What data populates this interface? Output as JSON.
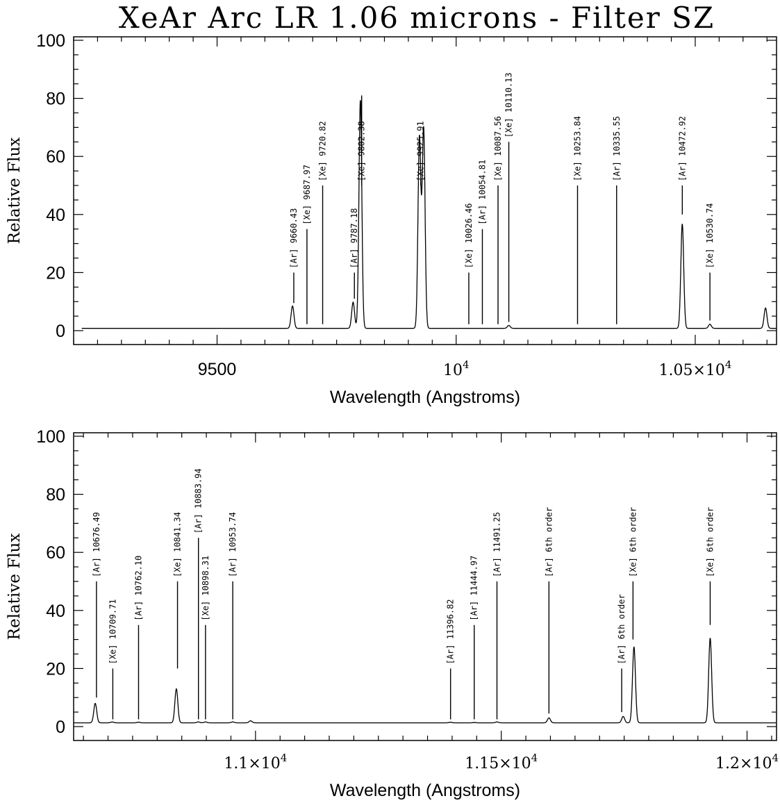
{
  "title": "XeAr Arc LR 1.06 microns - Filter SZ",
  "chart_data": [
    {
      "type": "line",
      "xlabel": "Wavelength (Angstroms)",
      "ylabel": "Relative Flux",
      "xlim": [
        9200,
        10670
      ],
      "ylim": [
        0,
        100
      ],
      "yticks": [
        "0",
        "20",
        "40",
        "60",
        "80",
        "100"
      ],
      "xticks": [
        {
          "value": 9500,
          "label": "9500",
          "style": "plain"
        },
        {
          "value": 10000,
          "base": "10",
          "exp": "4",
          "style": "pow"
        },
        {
          "value": 10500,
          "base": "1.05×10",
          "exp": "4",
          "style": "pow"
        }
      ],
      "baseline": 0.8,
      "peaks": [
        {
          "x": 9657.8,
          "height": 8.5
        },
        {
          "x": 9784.5,
          "height": 9.8
        },
        {
          "x": 9799.7,
          "height": 79.5
        },
        {
          "x": 9923.2,
          "height": 66.5
        },
        {
          "x": 9932.0,
          "height": 69.5
        },
        {
          "x": 10110.1,
          "height": 1.8
        },
        {
          "x": 10472.9,
          "height": 36.8
        },
        {
          "x": 10530.7,
          "height": 2.2
        },
        {
          "x": 10647.0,
          "height": 7.8
        }
      ],
      "lines": [
        {
          "label": "[Ar] 9660.43",
          "x": 9660.43,
          "y0": 9.5,
          "y1": 20
        },
        {
          "label": "[Xe] 9687.97",
          "x": 9687.97,
          "y0": 2.2,
          "y1": 35
        },
        {
          "label": "[Xe] 9720.82",
          "x": 9720.82,
          "y0": 2.2,
          "y1": 50
        },
        {
          "label": "[Ar] 9787.18",
          "x": 9787.18,
          "y0": 11,
          "y1": 20
        },
        {
          "label": "[Xe] 9802.38",
          "x": 9802.38,
          "y0": 81,
          "y1": 50
        },
        {
          "label": "[Xe] 9925.91",
          "x": 9925.91,
          "y0": 52,
          "y1": 50
        },
        {
          "label": "[Xe] 10026.46",
          "x": 10026.46,
          "y0": 2.2,
          "y1": 20
        },
        {
          "label": "[Ar] 10054.81",
          "x": 10054.81,
          "y0": 2.2,
          "y1": 35
        },
        {
          "label": "[Xe] 10087.56",
          "x": 10087.56,
          "y0": 2.2,
          "y1": 50
        },
        {
          "label": "[Xe] 10110.13",
          "x": 10110.13,
          "y0": 3,
          "y1": 65
        },
        {
          "label": "[Xe] 10253.84",
          "x": 10253.84,
          "y0": 2.2,
          "y1": 50
        },
        {
          "label": "[Ar] 10335.55",
          "x": 10335.55,
          "y0": 2.2,
          "y1": 50
        },
        {
          "label": "[Ar] 10472.92",
          "x": 10472.92,
          "y0": 40,
          "y1": 50
        },
        {
          "label": "[Xe] 10530.74",
          "x": 10530.74,
          "y0": 3.5,
          "y1": 20
        }
      ]
    },
    {
      "type": "line",
      "xlabel": "Wavelength (Angstroms)",
      "ylabel": "Relative Flux",
      "xlim": [
        10630,
        12060
      ],
      "ylim": [
        0,
        100
      ],
      "yticks": [
        "0",
        "20",
        "40",
        "60",
        "80",
        "100"
      ],
      "xticks": [
        {
          "value": 11000,
          "base": "1.1×10",
          "exp": "4",
          "style": "pow"
        },
        {
          "value": 11500,
          "base": "1.15×10",
          "exp": "4",
          "style": "pow"
        },
        {
          "value": 12000,
          "base": "1.2×10",
          "exp": "4",
          "style": "pow"
        }
      ],
      "baseline": 1.3,
      "peaks": [
        {
          "x": 10674.0,
          "height": 8.0
        },
        {
          "x": 10708.5,
          "height": 1.6
        },
        {
          "x": 10762.1,
          "height": 1.5
        },
        {
          "x": 10839.0,
          "height": 13.0
        },
        {
          "x": 10883.9,
          "height": 1.6
        },
        {
          "x": 10898.3,
          "height": 1.6
        },
        {
          "x": 10953.7,
          "height": 1.6
        },
        {
          "x": 10990.0,
          "height": 2.0
        },
        {
          "x": 11396.8,
          "height": 1.5
        },
        {
          "x": 11444.9,
          "height": 1.4
        },
        {
          "x": 11491.2,
          "height": 1.6
        },
        {
          "x": 11597.0,
          "height": 3.0
        },
        {
          "x": 11748.0,
          "height": 3.5
        },
        {
          "x": 11770.0,
          "height": 27.5
        },
        {
          "x": 11925.0,
          "height": 30.5
        }
      ],
      "lines": [
        {
          "label": "[Ar] 10676.49",
          "x": 10676.49,
          "y0": 10,
          "y1": 50
        },
        {
          "label": "[Xe] 10709.71",
          "x": 10709.71,
          "y0": 2.5,
          "y1": 20
        },
        {
          "label": "[Ar] 10762.10",
          "x": 10762.1,
          "y0": 2.5,
          "y1": 35
        },
        {
          "label": "[Xe] 10841.34",
          "x": 10841.34,
          "y0": 20,
          "y1": 50
        },
        {
          "label": "[Ar] 10883.94",
          "x": 10883.94,
          "y0": 2.5,
          "y1": 65
        },
        {
          "label": "[Xe] 10898.31",
          "x": 10898.31,
          "y0": 2.5,
          "y1": 35
        },
        {
          "label": "[Ar] 10953.74",
          "x": 10953.74,
          "y0": 2.5,
          "y1": 50
        },
        {
          "label": "[Ar] 11396.82",
          "x": 11396.82,
          "y0": 2.5,
          "y1": 20
        },
        {
          "label": "[Ar] 11444.97",
          "x": 11444.97,
          "y0": 2.5,
          "y1": 35
        },
        {
          "label": "[Ar] 11491.25",
          "x": 11491.25,
          "y0": 2.5,
          "y1": 50
        },
        {
          "label": "[Ar] 6th order",
          "x": 11597.0,
          "y0": 4.5,
          "y1": 50
        },
        {
          "label": "[Ar] 6th order",
          "x": 11745.0,
          "y0": 5,
          "y1": 20
        },
        {
          "label": "[Xe] 6th order",
          "x": 11768.0,
          "y0": 30,
          "y1": 50
        },
        {
          "label": "[Xe] 6th order",
          "x": 11925.0,
          "y0": 35,
          "y1": 50
        }
      ]
    }
  ]
}
